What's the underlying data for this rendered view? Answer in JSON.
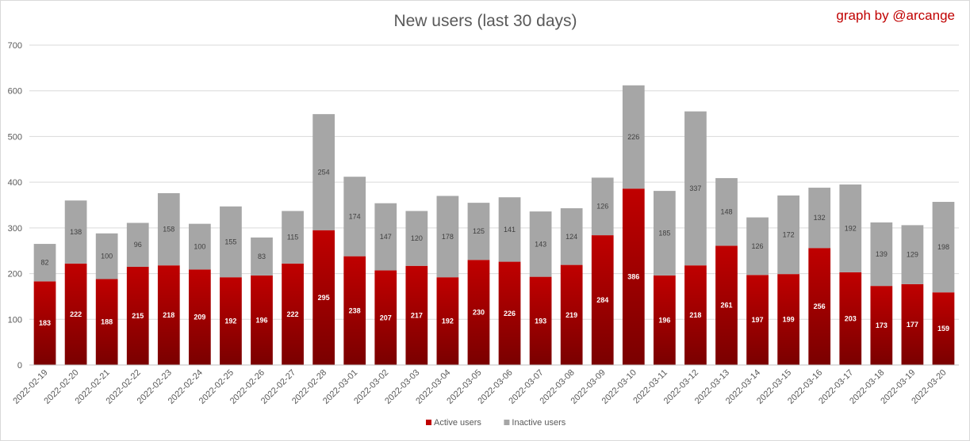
{
  "chart_data": {
    "type": "bar",
    "stacked": true,
    "title": "New users (last 30 days)",
    "credit": "graph by @arcange",
    "xlabel": "",
    "ylabel": "",
    "ylim": [
      0,
      700
    ],
    "yticks": [
      0,
      100,
      200,
      300,
      400,
      500,
      600,
      700
    ],
    "grid": true,
    "legend_position": "bottom",
    "categories": [
      "2022-02-19",
      "2022-02-20",
      "2022-02-21",
      "2022-02-22",
      "2022-02-23",
      "2022-02-24",
      "2022-02-25",
      "2022-02-26",
      "2022-02-27",
      "2022-02-28",
      "2022-03-01",
      "2022-03-02",
      "2022-03-03",
      "2022-03-04",
      "2022-03-05",
      "2022-03-06",
      "2022-03-07",
      "2022-03-08",
      "2022-03-09",
      "2022-03-10",
      "2022-03-11",
      "2022-03-12",
      "2022-03-13",
      "2022-03-14",
      "2022-03-15",
      "2022-03-16",
      "2022-03-17",
      "2022-03-18",
      "2022-03-19",
      "2022-03-20"
    ],
    "series": [
      {
        "name": "Active users",
        "color": "#c00000",
        "values": [
          183,
          222,
          188,
          215,
          218,
          209,
          192,
          196,
          222,
          295,
          238,
          207,
          217,
          192,
          230,
          226,
          193,
          219,
          284,
          386,
          196,
          218,
          261,
          197,
          199,
          256,
          203,
          173,
          177,
          159
        ]
      },
      {
        "name": "Inactive users",
        "color": "#a6a6a6",
        "values": [
          82,
          138,
          100,
          96,
          158,
          100,
          155,
          83,
          115,
          254,
          174,
          147,
          120,
          178,
          125,
          141,
          143,
          124,
          126,
          226,
          185,
          337,
          148,
          126,
          172,
          132,
          192,
          139,
          129,
          198
        ]
      }
    ]
  }
}
